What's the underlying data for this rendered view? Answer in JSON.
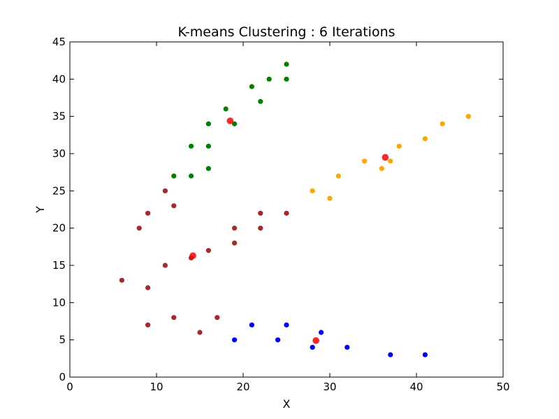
{
  "chart_data": {
    "type": "scatter",
    "title": "K-means Clustering : 6 Iterations",
    "xlabel": "X",
    "ylabel": "Y",
    "xlim": [
      0,
      50
    ],
    "ylim": [
      0,
      45
    ],
    "xticks": [
      0,
      10,
      20,
      30,
      40,
      50
    ],
    "yticks": [
      0,
      5,
      10,
      15,
      20,
      25,
      30,
      35,
      40,
      45
    ],
    "grid": false,
    "legend": "none",
    "series": [
      {
        "color": "#008000",
        "points": [
          [
            12,
            27
          ],
          [
            14,
            27
          ],
          [
            14,
            31
          ],
          [
            16,
            28
          ],
          [
            16,
            31
          ],
          [
            16,
            34
          ],
          [
            18,
            36
          ],
          [
            19,
            34
          ],
          [
            21,
            39
          ],
          [
            22,
            37
          ],
          [
            23,
            40
          ],
          [
            25,
            40
          ],
          [
            25,
            42
          ]
        ]
      },
      {
        "color": "#ffa500",
        "points": [
          [
            28,
            25
          ],
          [
            30,
            24
          ],
          [
            31,
            27
          ],
          [
            34,
            29
          ],
          [
            36,
            28
          ],
          [
            37,
            29
          ],
          [
            38,
            31
          ],
          [
            41,
            32
          ],
          [
            43,
            34
          ],
          [
            46,
            35
          ]
        ]
      },
      {
        "color": "#a52a2a",
        "points": [
          [
            6,
            13
          ],
          [
            8,
            20
          ],
          [
            9,
            22
          ],
          [
            9,
            12
          ],
          [
            9,
            7
          ],
          [
            11,
            25
          ],
          [
            11,
            15
          ],
          [
            12,
            23
          ],
          [
            12,
            8
          ],
          [
            14,
            16
          ],
          [
            15,
            6
          ],
          [
            16,
            17
          ],
          [
            17,
            8
          ],
          [
            19,
            20
          ],
          [
            19,
            18
          ],
          [
            22,
            22
          ],
          [
            22,
            20
          ],
          [
            25,
            22
          ]
        ]
      },
      {
        "color": "#0000ff",
        "points": [
          [
            19,
            5
          ],
          [
            21,
            7
          ],
          [
            24,
            5
          ],
          [
            25,
            7
          ],
          [
            28,
            4
          ],
          [
            29,
            6
          ],
          [
            32,
            4
          ],
          [
            37,
            3
          ],
          [
            41,
            3
          ]
        ]
      }
    ],
    "centroids": {
      "color": "#ff0000",
      "points": [
        [
          18.5,
          34.4
        ],
        [
          36.4,
          29.5
        ],
        [
          14.2,
          16.3
        ],
        [
          28.4,
          4.9
        ]
      ]
    }
  }
}
